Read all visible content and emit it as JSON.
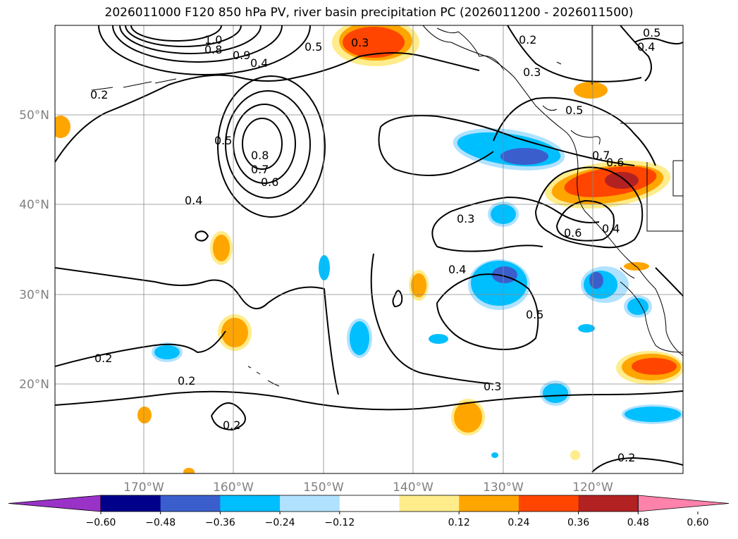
{
  "title": "2026011000 F120 850 hPa PV, river basin precipitation PC (2026011200 - 2026011500)",
  "map": {
    "lon_labels": [
      "170°W",
      "160°W",
      "150°W",
      "140°W",
      "130°W",
      "120°W"
    ],
    "lat_labels": [
      "50°N",
      "40°N",
      "30°N",
      "20°N"
    ],
    "contour_labels": [
      "1.0",
      "0.8",
      "0.9",
      "0.5",
      "0.4",
      "0.3",
      "0.2",
      "0.5",
      "0.4",
      "0.2",
      "0.3",
      "0.5",
      "0.8",
      "0.7",
      "0.6",
      "0.5",
      "0.4",
      "0.7",
      "0.6",
      "0.6",
      "0.4",
      "0.3",
      "0.4",
      "0.5",
      "0.3",
      "0.2",
      "0.2",
      "0.2",
      "0.2"
    ]
  },
  "colorbar": {
    "ticks": [
      "−0.60",
      "−0.48",
      "−0.36",
      "−0.24",
      "−0.12",
      "0.12",
      "0.24",
      "0.36",
      "0.48",
      "0.60"
    ],
    "colors": [
      "#9b32c8",
      "#00008b",
      "#3a5fcd",
      "#00bfff",
      "#b0e2ff",
      "#ffffff",
      "#ffec8b",
      "#ffa500",
      "#ff4500",
      "#b22222",
      "#ff82ab"
    ]
  }
}
